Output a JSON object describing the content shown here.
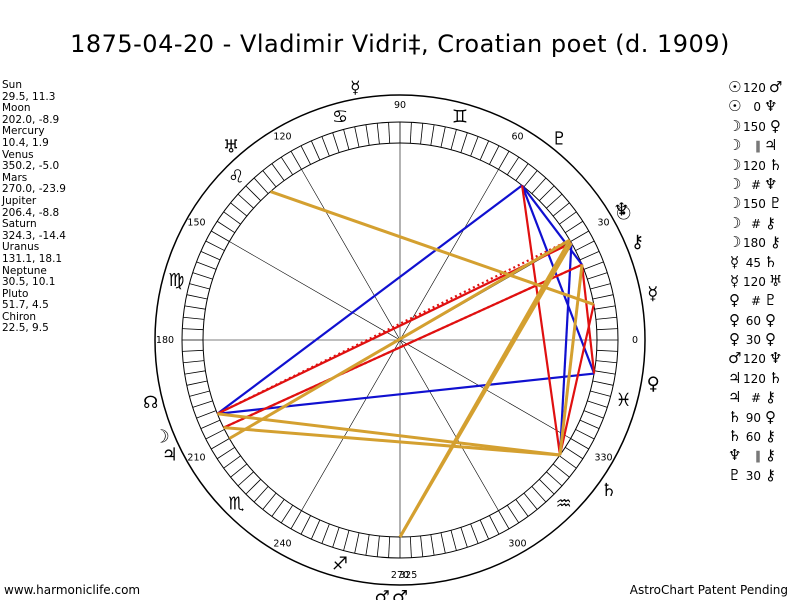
{
  "header": {
    "title": "1875-04-20 - Vladimir Vidri‡, Croatian poet (d. 1909)"
  },
  "footer": {
    "left": "www.harmoniclife.com",
    "right": "AstroChart Patent Pending"
  },
  "planets": [
    {
      "name": "Sun",
      "symbol": "☉",
      "coords": "29.5, 11.3",
      "lon": 29.5,
      "color": "#000000"
    },
    {
      "name": "Moon",
      "symbol": "☽",
      "coords": "202.0, -8.9",
      "lon": 202.0,
      "color": "#000000"
    },
    {
      "name": "Mercury",
      "symbol": "☿",
      "coords": "10.4, 1.9",
      "lon": 10.4,
      "color": "#000000"
    },
    {
      "name": "Venus",
      "symbol": "♀",
      "coords": "350.2, -5.0",
      "lon": 350.2,
      "color": "#000000"
    },
    {
      "name": "Mars",
      "symbol": "♂",
      "coords": "270.0, -23.9",
      "lon": 270.0,
      "color": "#000000"
    },
    {
      "name": "Jupiter",
      "symbol": "♃",
      "coords": "206.4, -8.8",
      "lon": 206.4,
      "color": "#000000"
    },
    {
      "name": "Saturn",
      "symbol": "♄",
      "coords": "324.3, -14.4",
      "lon": 324.3,
      "color": "#000000"
    },
    {
      "name": "Uranus",
      "symbol": "♅",
      "coords": "131.1, 18.1",
      "lon": 131.1,
      "color": "#000000"
    },
    {
      "name": "Neptune",
      "symbol": "♆",
      "coords": "30.5, 10.1",
      "lon": 30.5,
      "color": "#000000"
    },
    {
      "name": "Pluto",
      "symbol": "♇",
      "coords": "51.7, 4.5",
      "lon": 51.7,
      "color": "#000000"
    },
    {
      "name": "Chiron",
      "symbol": "⚷",
      "coords": "22.5, 9.5",
      "lon": 22.5,
      "color": "#000000"
    }
  ],
  "extra_markers": [
    {
      "symbol": "☊",
      "lon": 194.0
    },
    {
      "symbol": "☿",
      "lon": 100.0
    },
    {
      "symbol": "♂",
      "lon": 266.0
    }
  ],
  "zodiac_signs": [
    {
      "symbol": "♓",
      "lon": 345
    },
    {
      "symbol": "♒",
      "lon": 315
    },
    {
      "symbol": "♐",
      "lon": 255
    },
    {
      "symbol": "♏",
      "lon": 225
    },
    {
      "symbol": "♍",
      "lon": 165
    },
    {
      "symbol": "♌",
      "lon": 135
    },
    {
      "symbol": "♋",
      "lon": 105
    },
    {
      "symbol": "♊",
      "lon": 75
    }
  ],
  "chart_data": {
    "type": "astrological-wheel",
    "title": "1875-04-20 - Vladimir Vidri‡, Croatian poet (d. 1909)",
    "degree_labels": [
      {
        "text": "0",
        "lon": 0
      },
      {
        "text": "30",
        "lon": 30
      },
      {
        "text": "60",
        "lon": 60
      },
      {
        "text": "90",
        "lon": 90
      },
      {
        "text": "120",
        "lon": 120
      },
      {
        "text": "150",
        "lon": 150
      },
      {
        "text": "180",
        "lon": 180
      },
      {
        "text": "210",
        "lon": 210
      },
      {
        "text": "240",
        "lon": 240
      },
      {
        "text": "270",
        "lon": 270
      },
      {
        "text": "300",
        "lon": 300
      },
      {
        "text": "330",
        "lon": 330
      },
      {
        "text": "325",
        "lon": 272
      }
    ],
    "aspect_lines": [
      {
        "from": 202.0,
        "to": 51.7,
        "color": "blue",
        "style": "solid"
      },
      {
        "from": 51.7,
        "to": 22.5,
        "color": "blue",
        "style": "solid"
      },
      {
        "from": 51.7,
        "to": 350.2,
        "color": "blue",
        "style": "solid"
      },
      {
        "from": 29.5,
        "to": 324.3,
        "color": "blue",
        "style": "solid"
      },
      {
        "from": 202.0,
        "to": 350.2,
        "color": "blue",
        "style": "solid"
      },
      {
        "from": 202.0,
        "to": 29.5,
        "color": "red",
        "style": "solid"
      },
      {
        "from": 206.4,
        "to": 22.5,
        "color": "red",
        "style": "solid"
      },
      {
        "from": 202.0,
        "to": 30.5,
        "color": "red",
        "style": "dotted"
      },
      {
        "from": 206.4,
        "to": 22.5,
        "color": "red",
        "style": "dotted"
      },
      {
        "from": 51.7,
        "to": 324.3,
        "color": "red",
        "style": "solid"
      },
      {
        "from": 22.5,
        "to": 350.2,
        "color": "red",
        "style": "solid"
      },
      {
        "from": 10.4,
        "to": 324.3,
        "color": "red",
        "style": "solid"
      },
      {
        "from": 131.1,
        "to": 10.4,
        "color": "gold",
        "style": "solid"
      },
      {
        "from": 131.1,
        "to": 131.1,
        "color": "gold",
        "style": "solid"
      },
      {
        "from": 206.4,
        "to": 324.3,
        "color": "gold",
        "style": "solid"
      },
      {
        "from": 202.0,
        "to": 324.3,
        "color": "gold",
        "style": "solid"
      },
      {
        "from": 29.5,
        "to": 270.0,
        "color": "gold",
        "style": "solid"
      },
      {
        "from": 30.5,
        "to": 270.0,
        "color": "gold",
        "style": "solid"
      },
      {
        "from": 210.0,
        "to": 30.5,
        "color": "gold",
        "style": "solid"
      },
      {
        "from": 22.5,
        "to": 324.3,
        "color": "gold",
        "style": "solid"
      }
    ],
    "aspects": [
      {
        "p1": "☉",
        "angle": "120",
        "p2": "♂"
      },
      {
        "p1": "☉",
        "angle": "0",
        "p2": "♆"
      },
      {
        "p1": "☽",
        "angle": "150",
        "p2": "♀"
      },
      {
        "p1": "☽",
        "angle": "∥",
        "p2": "♃"
      },
      {
        "p1": "☽",
        "angle": "120",
        "p2": "♄"
      },
      {
        "p1": "☽",
        "angle": "#",
        "p2": "♆"
      },
      {
        "p1": "☽",
        "angle": "150",
        "p2": "♇"
      },
      {
        "p1": "☽",
        "angle": "#",
        "p2": "⚷"
      },
      {
        "p1": "☽",
        "angle": "180",
        "p2": "⚷"
      },
      {
        "p1": "☿",
        "angle": "45",
        "p2": "♄"
      },
      {
        "p1": "☿",
        "angle": "120",
        "p2": "♅"
      },
      {
        "p1": "♀",
        "angle": "#",
        "p2": "♇"
      },
      {
        "p1": "♀",
        "angle": "60",
        "p2": "♀"
      },
      {
        "p1": "♀",
        "angle": "30",
        "p2": "♀"
      },
      {
        "p1": "♂",
        "angle": "120",
        "p2": "♆"
      },
      {
        "p1": "♃",
        "angle": "120",
        "p2": "♄"
      },
      {
        "p1": "♃",
        "angle": "#",
        "p2": "⚷"
      },
      {
        "p1": "♄",
        "angle": "90",
        "p2": "♀"
      },
      {
        "p1": "♄",
        "angle": "60",
        "p2": "⚷"
      },
      {
        "p1": "♆",
        "angle": "∥",
        "p2": "⚷"
      },
      {
        "p1": "♇",
        "angle": "30",
        "p2": "⚷"
      }
    ]
  },
  "colors": {
    "blue": "#1010d0",
    "red": "#e01010",
    "gold": "#d4a030",
    "ring": "#000000"
  }
}
